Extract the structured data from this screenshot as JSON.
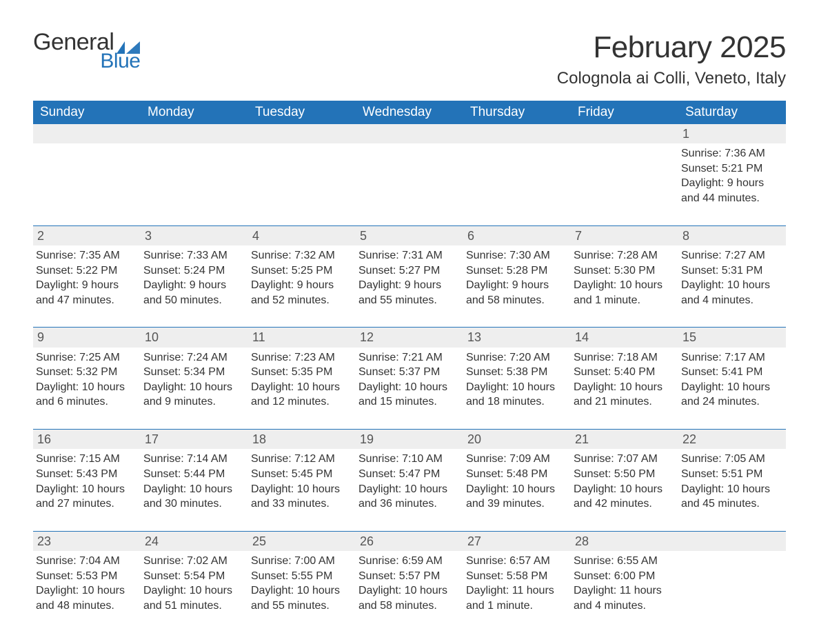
{
  "logo": {
    "text_general": "General",
    "text_blue": "Blue",
    "brand_color": "#2373b8"
  },
  "title": {
    "month": "February 2025",
    "location": "Colognola ai Colli, Veneto, Italy"
  },
  "colors": {
    "header_bg": "#2373b8",
    "header_text": "#ffffff",
    "row_divider": "#2373b8",
    "daynum_bg": "#eeeeee",
    "body_text": "#333333",
    "page_bg": "#ffffff"
  },
  "typography": {
    "title_fontsize_pt": 33,
    "location_fontsize_pt": 18,
    "header_fontsize_pt": 14,
    "cell_fontsize_pt": 12,
    "font_family": "Segoe UI / Arial"
  },
  "layout": {
    "columns": 7,
    "rows": 5,
    "aspect": "1188x918"
  },
  "day_headers": [
    "Sunday",
    "Monday",
    "Tuesday",
    "Wednesday",
    "Thursday",
    "Friday",
    "Saturday"
  ],
  "weeks": [
    [
      null,
      null,
      null,
      null,
      null,
      null,
      {
        "n": "1",
        "sunrise": "Sunrise: 7:36 AM",
        "sunset": "Sunset: 5:21 PM",
        "daylight1": "Daylight: 9 hours",
        "daylight2": "and 44 minutes."
      }
    ],
    [
      {
        "n": "2",
        "sunrise": "Sunrise: 7:35 AM",
        "sunset": "Sunset: 5:22 PM",
        "daylight1": "Daylight: 9 hours",
        "daylight2": "and 47 minutes."
      },
      {
        "n": "3",
        "sunrise": "Sunrise: 7:33 AM",
        "sunset": "Sunset: 5:24 PM",
        "daylight1": "Daylight: 9 hours",
        "daylight2": "and 50 minutes."
      },
      {
        "n": "4",
        "sunrise": "Sunrise: 7:32 AM",
        "sunset": "Sunset: 5:25 PM",
        "daylight1": "Daylight: 9 hours",
        "daylight2": "and 52 minutes."
      },
      {
        "n": "5",
        "sunrise": "Sunrise: 7:31 AM",
        "sunset": "Sunset: 5:27 PM",
        "daylight1": "Daylight: 9 hours",
        "daylight2": "and 55 minutes."
      },
      {
        "n": "6",
        "sunrise": "Sunrise: 7:30 AM",
        "sunset": "Sunset: 5:28 PM",
        "daylight1": "Daylight: 9 hours",
        "daylight2": "and 58 minutes."
      },
      {
        "n": "7",
        "sunrise": "Sunrise: 7:28 AM",
        "sunset": "Sunset: 5:30 PM",
        "daylight1": "Daylight: 10 hours",
        "daylight2": "and 1 minute."
      },
      {
        "n": "8",
        "sunrise": "Sunrise: 7:27 AM",
        "sunset": "Sunset: 5:31 PM",
        "daylight1": "Daylight: 10 hours",
        "daylight2": "and 4 minutes."
      }
    ],
    [
      {
        "n": "9",
        "sunrise": "Sunrise: 7:25 AM",
        "sunset": "Sunset: 5:32 PM",
        "daylight1": "Daylight: 10 hours",
        "daylight2": "and 6 minutes."
      },
      {
        "n": "10",
        "sunrise": "Sunrise: 7:24 AM",
        "sunset": "Sunset: 5:34 PM",
        "daylight1": "Daylight: 10 hours",
        "daylight2": "and 9 minutes."
      },
      {
        "n": "11",
        "sunrise": "Sunrise: 7:23 AM",
        "sunset": "Sunset: 5:35 PM",
        "daylight1": "Daylight: 10 hours",
        "daylight2": "and 12 minutes."
      },
      {
        "n": "12",
        "sunrise": "Sunrise: 7:21 AM",
        "sunset": "Sunset: 5:37 PM",
        "daylight1": "Daylight: 10 hours",
        "daylight2": "and 15 minutes."
      },
      {
        "n": "13",
        "sunrise": "Sunrise: 7:20 AM",
        "sunset": "Sunset: 5:38 PM",
        "daylight1": "Daylight: 10 hours",
        "daylight2": "and 18 minutes."
      },
      {
        "n": "14",
        "sunrise": "Sunrise: 7:18 AM",
        "sunset": "Sunset: 5:40 PM",
        "daylight1": "Daylight: 10 hours",
        "daylight2": "and 21 minutes."
      },
      {
        "n": "15",
        "sunrise": "Sunrise: 7:17 AM",
        "sunset": "Sunset: 5:41 PM",
        "daylight1": "Daylight: 10 hours",
        "daylight2": "and 24 minutes."
      }
    ],
    [
      {
        "n": "16",
        "sunrise": "Sunrise: 7:15 AM",
        "sunset": "Sunset: 5:43 PM",
        "daylight1": "Daylight: 10 hours",
        "daylight2": "and 27 minutes."
      },
      {
        "n": "17",
        "sunrise": "Sunrise: 7:14 AM",
        "sunset": "Sunset: 5:44 PM",
        "daylight1": "Daylight: 10 hours",
        "daylight2": "and 30 minutes."
      },
      {
        "n": "18",
        "sunrise": "Sunrise: 7:12 AM",
        "sunset": "Sunset: 5:45 PM",
        "daylight1": "Daylight: 10 hours",
        "daylight2": "and 33 minutes."
      },
      {
        "n": "19",
        "sunrise": "Sunrise: 7:10 AM",
        "sunset": "Sunset: 5:47 PM",
        "daylight1": "Daylight: 10 hours",
        "daylight2": "and 36 minutes."
      },
      {
        "n": "20",
        "sunrise": "Sunrise: 7:09 AM",
        "sunset": "Sunset: 5:48 PM",
        "daylight1": "Daylight: 10 hours",
        "daylight2": "and 39 minutes."
      },
      {
        "n": "21",
        "sunrise": "Sunrise: 7:07 AM",
        "sunset": "Sunset: 5:50 PM",
        "daylight1": "Daylight: 10 hours",
        "daylight2": "and 42 minutes."
      },
      {
        "n": "22",
        "sunrise": "Sunrise: 7:05 AM",
        "sunset": "Sunset: 5:51 PM",
        "daylight1": "Daylight: 10 hours",
        "daylight2": "and 45 minutes."
      }
    ],
    [
      {
        "n": "23",
        "sunrise": "Sunrise: 7:04 AM",
        "sunset": "Sunset: 5:53 PM",
        "daylight1": "Daylight: 10 hours",
        "daylight2": "and 48 minutes."
      },
      {
        "n": "24",
        "sunrise": "Sunrise: 7:02 AM",
        "sunset": "Sunset: 5:54 PM",
        "daylight1": "Daylight: 10 hours",
        "daylight2": "and 51 minutes."
      },
      {
        "n": "25",
        "sunrise": "Sunrise: 7:00 AM",
        "sunset": "Sunset: 5:55 PM",
        "daylight1": "Daylight: 10 hours",
        "daylight2": "and 55 minutes."
      },
      {
        "n": "26",
        "sunrise": "Sunrise: 6:59 AM",
        "sunset": "Sunset: 5:57 PM",
        "daylight1": "Daylight: 10 hours",
        "daylight2": "and 58 minutes."
      },
      {
        "n": "27",
        "sunrise": "Sunrise: 6:57 AM",
        "sunset": "Sunset: 5:58 PM",
        "daylight1": "Daylight: 11 hours",
        "daylight2": "and 1 minute."
      },
      {
        "n": "28",
        "sunrise": "Sunrise: 6:55 AM",
        "sunset": "Sunset: 6:00 PM",
        "daylight1": "Daylight: 11 hours",
        "daylight2": "and 4 minutes."
      },
      null
    ]
  ]
}
